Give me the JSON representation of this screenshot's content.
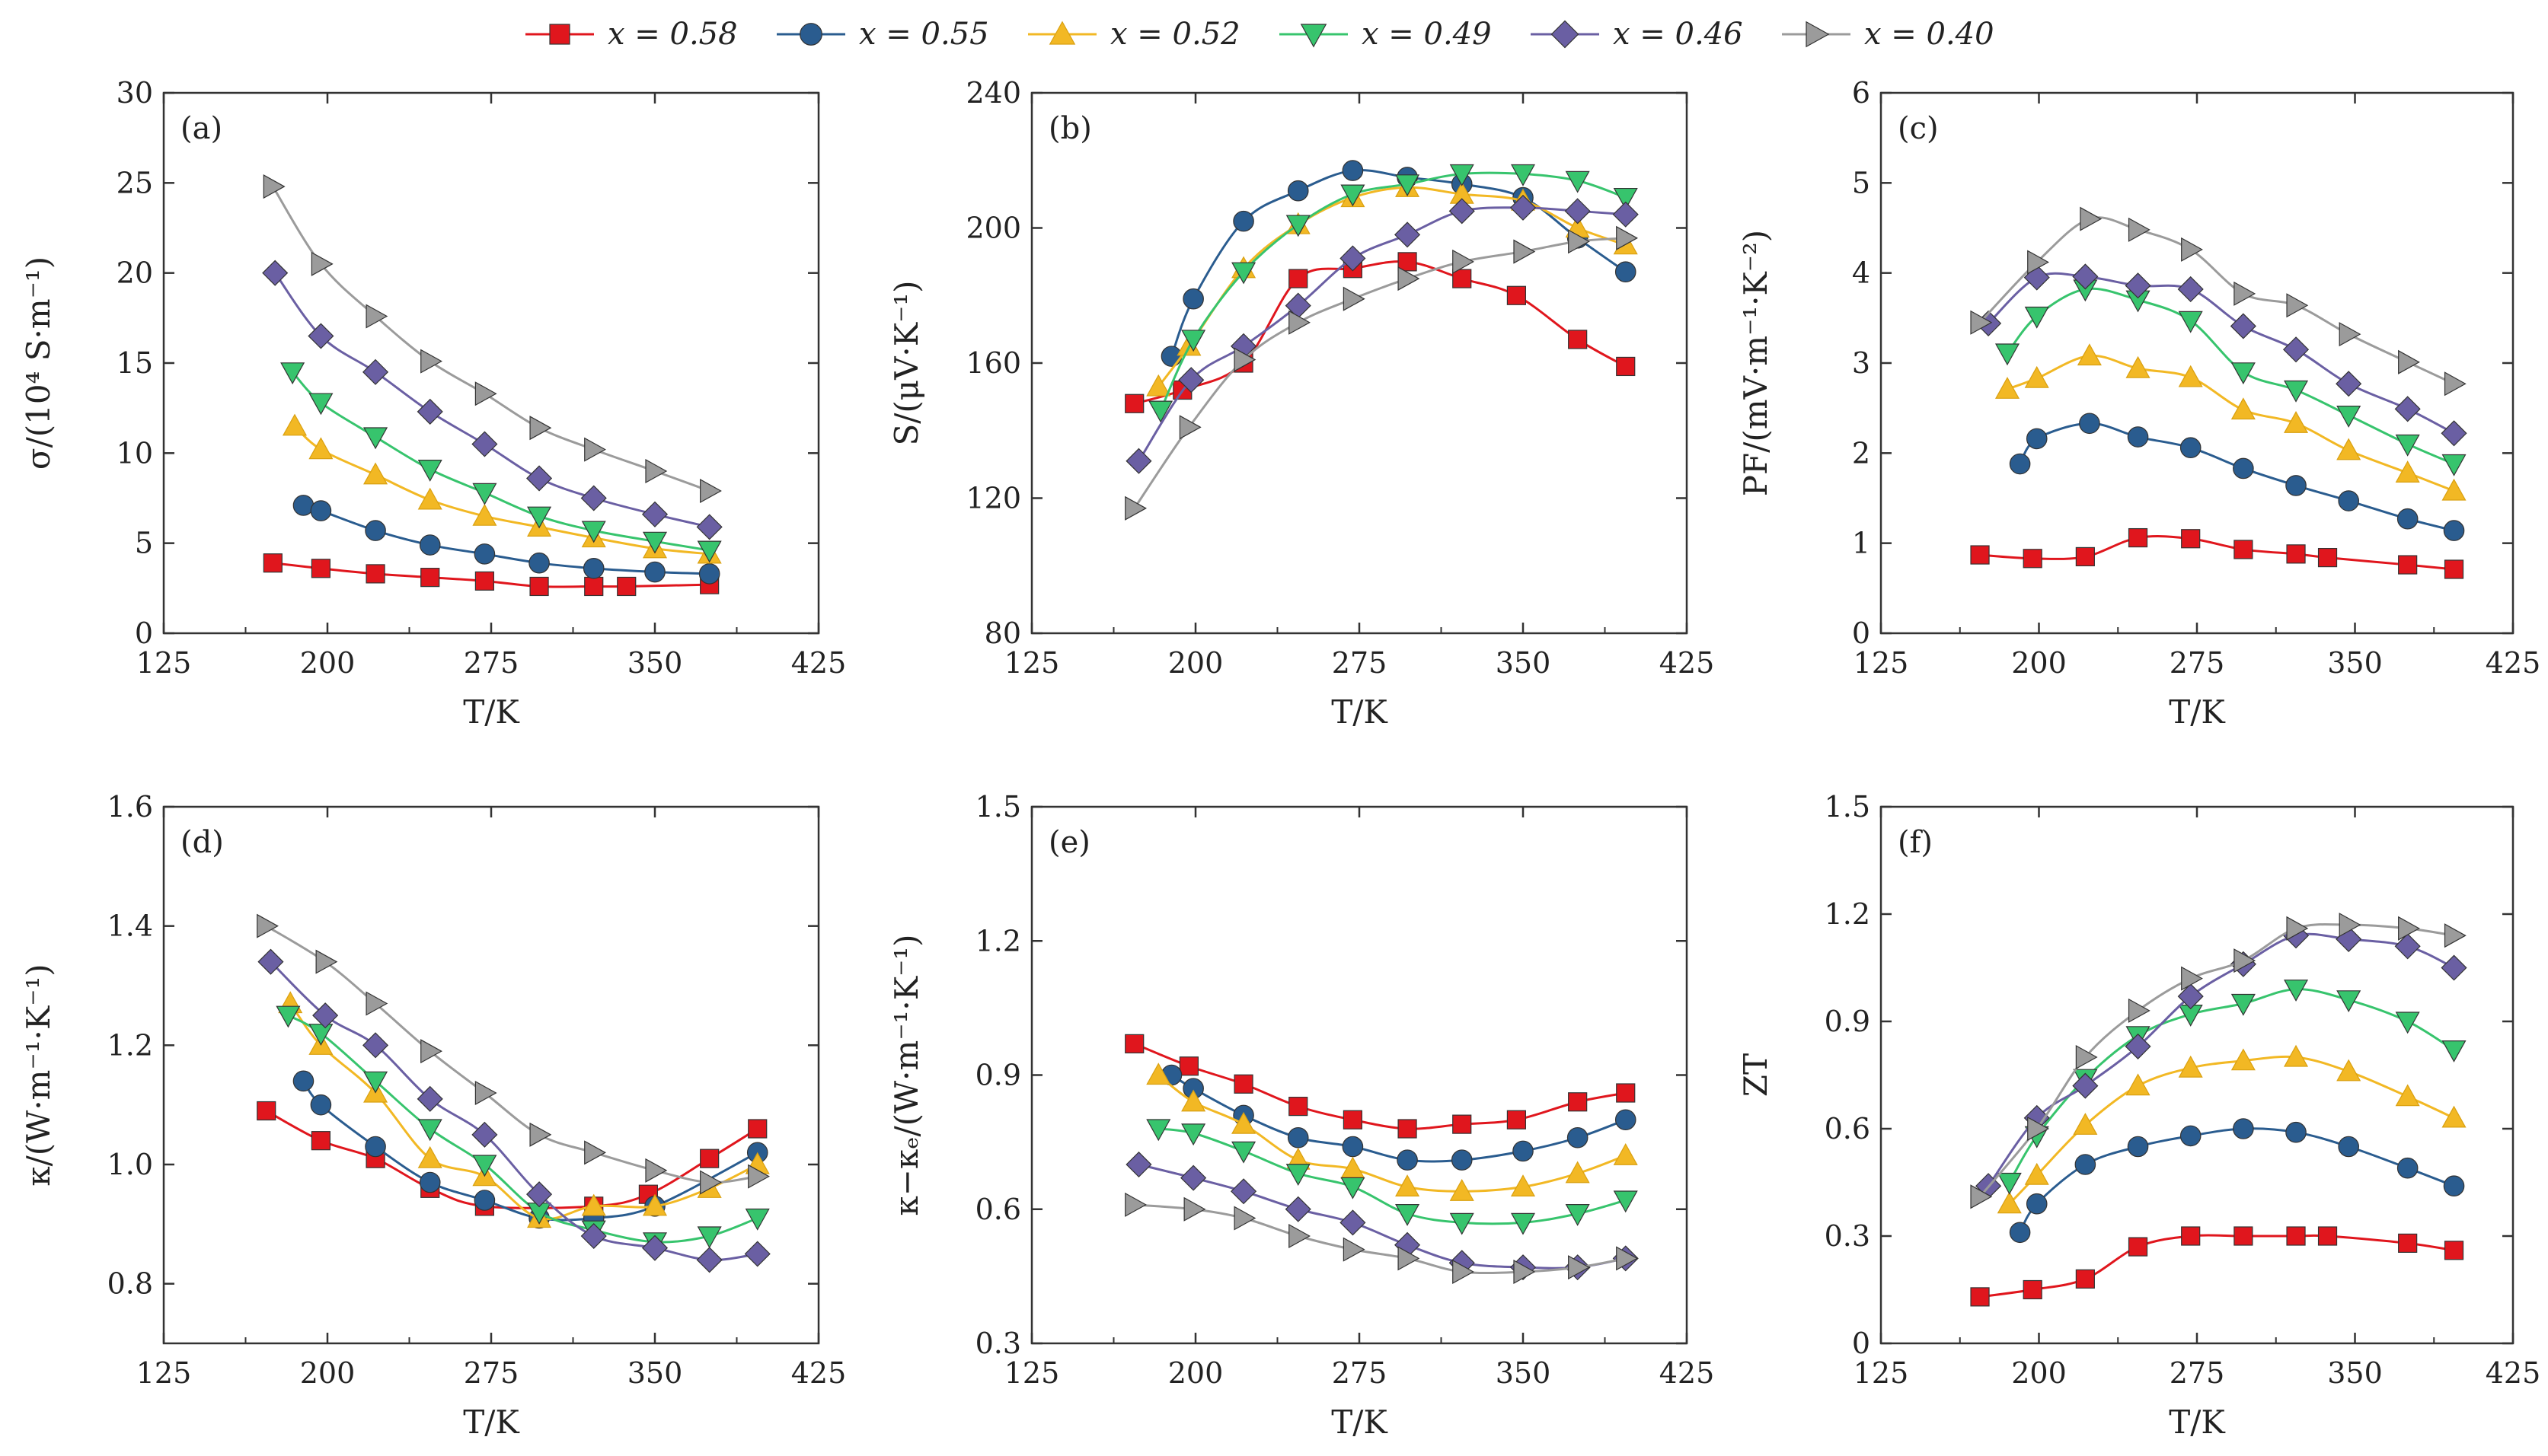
{
  "legend": {
    "placement": "top-center",
    "items": [
      {
        "label": "x = 0.58",
        "color": "#e0161d",
        "marker": "square"
      },
      {
        "label": "x = 0.55",
        "color": "#2a5c8f",
        "marker": "circle"
      },
      {
        "label": "x = 0.52",
        "color": "#f2b824",
        "marker": "triangle-up"
      },
      {
        "label": "x = 0.49",
        "color": "#37c46d",
        "marker": "triangle-down"
      },
      {
        "label": "x = 0.46",
        "color": "#6a5fa3",
        "marker": "diamond"
      },
      {
        "label": "x = 0.40",
        "color": "#9b9b9b",
        "marker": "triangle-right"
      }
    ]
  },
  "chart_data": [
    {
      "type": "line",
      "panel": "(a)",
      "xlabel": "T/K",
      "ylabel": "σ/(10⁴ S·m⁻¹)",
      "xlim": [
        125,
        425
      ],
      "ylim": [
        0,
        30
      ],
      "xticks": [
        125,
        200,
        275,
        350,
        425
      ],
      "yticks": [
        0,
        5,
        10,
        15,
        20,
        25,
        30
      ],
      "series": [
        {
          "name": "x = 0.58",
          "x": [
            175,
            197,
            222,
            247,
            272,
            297,
            322,
            337,
            375
          ],
          "y": [
            3.9,
            3.6,
            3.3,
            3.1,
            2.9,
            2.6,
            2.6,
            2.6,
            2.7
          ]
        },
        {
          "name": "x = 0.55",
          "x": [
            189,
            197,
            222,
            247,
            272,
            297,
            322,
            350,
            375
          ],
          "y": [
            7.1,
            6.8,
            5.7,
            4.9,
            4.4,
            3.9,
            3.6,
            3.4,
            3.3
          ]
        },
        {
          "name": "x = 0.52",
          "x": [
            185,
            197,
            222,
            247,
            272,
            297,
            322,
            350,
            375
          ],
          "y": [
            11.5,
            10.2,
            8.8,
            7.4,
            6.5,
            5.9,
            5.3,
            4.7,
            4.4
          ]
        },
        {
          "name": "x = 0.49",
          "x": [
            184,
            197,
            222,
            247,
            272,
            297,
            322,
            350,
            375
          ],
          "y": [
            14.5,
            12.8,
            10.9,
            9.1,
            7.8,
            6.5,
            5.7,
            5.1,
            4.6
          ]
        },
        {
          "name": "x = 0.46",
          "x": [
            176,
            197,
            222,
            247,
            272,
            297,
            322,
            350,
            375
          ],
          "y": [
            20.0,
            16.5,
            14.5,
            12.3,
            10.5,
            8.6,
            7.5,
            6.6,
            5.9
          ]
        },
        {
          "name": "x = 0.40",
          "x": [
            175,
            197,
            222,
            247,
            272,
            297,
            322,
            350,
            375
          ],
          "y": [
            24.8,
            20.5,
            17.6,
            15.1,
            13.3,
            11.4,
            10.2,
            9.0,
            7.9
          ]
        }
      ]
    },
    {
      "type": "line",
      "panel": "(b)",
      "xlabel": "T/K",
      "ylabel": "S/(μV·K⁻¹)",
      "xlim": [
        125,
        425
      ],
      "ylim": [
        80,
        240
      ],
      "xticks": [
        125,
        200,
        275,
        350,
        425
      ],
      "yticks": [
        80,
        120,
        160,
        200,
        240
      ],
      "series": [
        {
          "name": "x = 0.58",
          "x": [
            172,
            194,
            222,
            247,
            272,
            297,
            322,
            347,
            375,
            397
          ],
          "y": [
            148,
            152,
            160,
            185,
            188,
            190,
            185,
            180,
            167,
            159
          ]
        },
        {
          "name": "x = 0.55",
          "x": [
            189,
            199,
            222,
            247,
            272,
            297,
            322,
            350,
            375,
            397
          ],
          "y": [
            162,
            179,
            202,
            211,
            217,
            215,
            213,
            209,
            197,
            187
          ]
        },
        {
          "name": "x = 0.52",
          "x": [
            183,
            197,
            222,
            247,
            272,
            297,
            322,
            350,
            375,
            397
          ],
          "y": [
            153,
            165,
            188,
            201,
            209,
            212,
            210,
            208,
            200,
            195
          ]
        },
        {
          "name": "x = 0.49",
          "x": [
            184,
            199,
            222,
            247,
            272,
            297,
            322,
            350,
            375,
            397
          ],
          "y": [
            146,
            167,
            187,
            201,
            210,
            213,
            216,
            216,
            214,
            209
          ]
        },
        {
          "name": "x = 0.46",
          "x": [
            174,
            198,
            222,
            247,
            272,
            297,
            322,
            350,
            375,
            397
          ],
          "y": [
            131,
            155,
            165,
            177,
            191,
            198,
            205,
            206,
            205,
            204
          ]
        },
        {
          "name": "x = 0.40",
          "x": [
            172,
            197,
            222,
            247,
            272,
            297,
            322,
            350,
            375,
            397
          ],
          "y": [
            117,
            141,
            161,
            172,
            179,
            185,
            190,
            193,
            196,
            197
          ]
        }
      ]
    },
    {
      "type": "line",
      "panel": "(c)",
      "xlabel": "T/K",
      "ylabel": "PF/(mV·m⁻¹·K⁻²)",
      "xlim": [
        125,
        425
      ],
      "ylim": [
        0,
        6
      ],
      "xticks": [
        125,
        200,
        275,
        350,
        425
      ],
      "yticks": [
        0,
        1,
        2,
        3,
        4,
        5,
        6
      ],
      "series": [
        {
          "name": "x = 0.58",
          "x": [
            172,
            197,
            222,
            247,
            272,
            297,
            322,
            337,
            375,
            397
          ],
          "y": [
            0.87,
            0.83,
            0.85,
            1.06,
            1.05,
            0.93,
            0.88,
            0.84,
            0.76,
            0.71
          ]
        },
        {
          "name": "x = 0.55",
          "x": [
            191,
            199,
            224,
            247,
            272,
            297,
            322,
            347,
            375,
            397
          ],
          "y": [
            1.88,
            2.16,
            2.33,
            2.18,
            2.06,
            1.83,
            1.64,
            1.47,
            1.27,
            1.14
          ]
        },
        {
          "name": "x = 0.52",
          "x": [
            185,
            199,
            224,
            247,
            272,
            297,
            322,
            347,
            375,
            397
          ],
          "y": [
            2.71,
            2.83,
            3.08,
            2.94,
            2.84,
            2.48,
            2.33,
            2.03,
            1.78,
            1.58
          ]
        },
        {
          "name": "x = 0.49",
          "x": [
            185,
            199,
            222,
            247,
            272,
            297,
            322,
            347,
            375,
            397
          ],
          "y": [
            3.11,
            3.52,
            3.82,
            3.7,
            3.47,
            2.9,
            2.7,
            2.42,
            2.1,
            1.88
          ]
        },
        {
          "name": "x = 0.46",
          "x": [
            176,
            199,
            222,
            247,
            272,
            297,
            322,
            347,
            375,
            397
          ],
          "y": [
            3.44,
            3.95,
            3.96,
            3.86,
            3.82,
            3.41,
            3.15,
            2.77,
            2.49,
            2.22
          ]
        },
        {
          "name": "x = 0.40",
          "x": [
            172,
            199,
            224,
            247,
            272,
            297,
            322,
            347,
            375,
            397
          ],
          "y": [
            3.45,
            4.12,
            4.6,
            4.48,
            4.26,
            3.77,
            3.64,
            3.32,
            3.01,
            2.77
          ]
        }
      ]
    },
    {
      "type": "line",
      "panel": "(d)",
      "xlabel": "T/K",
      "ylabel": "κ/(W·m⁻¹·K⁻¹)",
      "xlim": [
        125,
        425
      ],
      "ylim": [
        0.7,
        1.6
      ],
      "xticks": [
        125,
        200,
        275,
        350,
        425
      ],
      "yticks": [
        0.8,
        1.0,
        1.2,
        1.4,
        1.6
      ],
      "series": [
        {
          "name": "x = 0.58",
          "x": [
            172,
            197,
            222,
            247,
            272,
            322,
            347,
            375,
            397
          ],
          "y": [
            1.09,
            1.04,
            1.01,
            0.96,
            0.93,
            0.93,
            0.95,
            1.01,
            1.06
          ]
        },
        {
          "name": "x = 0.55",
          "x": [
            189,
            197,
            222,
            247,
            272,
            297,
            322,
            350,
            397
          ],
          "y": [
            1.14,
            1.1,
            1.03,
            0.97,
            0.94,
            0.91,
            0.91,
            0.93,
            1.02
          ]
        },
        {
          "name": "x = 0.52",
          "x": [
            183,
            197,
            222,
            247,
            272,
            297,
            322,
            350,
            375,
            397
          ],
          "y": [
            1.27,
            1.2,
            1.12,
            1.01,
            0.98,
            0.91,
            0.93,
            0.93,
            0.96,
            1.0
          ]
        },
        {
          "name": "x = 0.49",
          "x": [
            182,
            197,
            222,
            247,
            272,
            297,
            322,
            350,
            375,
            397
          ],
          "y": [
            1.25,
            1.22,
            1.14,
            1.06,
            1.0,
            0.92,
            0.89,
            0.87,
            0.88,
            0.91
          ]
        },
        {
          "name": "x = 0.46",
          "x": [
            174,
            199,
            222,
            247,
            272,
            297,
            322,
            350,
            375,
            397
          ],
          "y": [
            1.34,
            1.25,
            1.2,
            1.11,
            1.05,
            0.95,
            0.88,
            0.86,
            0.84,
            0.85
          ]
        },
        {
          "name": "x = 0.40",
          "x": [
            172,
            199,
            222,
            247,
            272,
            297,
            322,
            350,
            375,
            397
          ],
          "y": [
            1.4,
            1.34,
            1.27,
            1.19,
            1.12,
            1.05,
            1.02,
            0.99,
            0.97,
            0.98
          ]
        }
      ]
    },
    {
      "type": "line",
      "panel": "(e)",
      "xlabel": "T/K",
      "ylabel": "κ−κₑ/(W·m⁻¹·K⁻¹)",
      "xlim": [
        125,
        425
      ],
      "ylim": [
        0.3,
        1.5
      ],
      "xticks": [
        125,
        200,
        275,
        350,
        425
      ],
      "yticks": [
        0.3,
        0.6,
        0.9,
        1.2,
        1.5
      ],
      "series": [
        {
          "name": "x = 0.58",
          "x": [
            172,
            197,
            222,
            247,
            272,
            297,
            322,
            347,
            375,
            397
          ],
          "y": [
            0.97,
            0.92,
            0.88,
            0.83,
            0.8,
            0.78,
            0.79,
            0.8,
            0.84,
            0.86
          ]
        },
        {
          "name": "x = 0.55",
          "x": [
            189,
            199,
            222,
            247,
            272,
            297,
            322,
            350,
            375,
            397
          ],
          "y": [
            0.9,
            0.87,
            0.81,
            0.76,
            0.74,
            0.71,
            0.71,
            0.73,
            0.76,
            0.8
          ]
        },
        {
          "name": "x = 0.52",
          "x": [
            183,
            199,
            222,
            247,
            272,
            297,
            322,
            350,
            375,
            397
          ],
          "y": [
            0.9,
            0.84,
            0.79,
            0.71,
            0.69,
            0.65,
            0.64,
            0.65,
            0.68,
            0.72
          ]
        },
        {
          "name": "x = 0.49",
          "x": [
            183,
            199,
            222,
            247,
            272,
            297,
            322,
            350,
            375,
            397
          ],
          "y": [
            0.78,
            0.77,
            0.73,
            0.68,
            0.65,
            0.59,
            0.57,
            0.57,
            0.59,
            0.62
          ]
        },
        {
          "name": "x = 0.46",
          "x": [
            174,
            199,
            222,
            247,
            272,
            297,
            322,
            350,
            375,
            397
          ],
          "y": [
            0.7,
            0.67,
            0.64,
            0.6,
            0.57,
            0.52,
            0.48,
            0.47,
            0.47,
            0.49
          ]
        },
        {
          "name": "x = 0.40",
          "x": [
            172,
            199,
            222,
            247,
            272,
            297,
            322,
            350,
            375,
            397
          ],
          "y": [
            0.61,
            0.6,
            0.58,
            0.54,
            0.51,
            0.49,
            0.46,
            0.46,
            0.47,
            0.49
          ]
        }
      ]
    },
    {
      "type": "line",
      "panel": "(f)",
      "xlabel": "T/K",
      "ylabel": "ZT",
      "xlim": [
        125,
        425
      ],
      "ylim": [
        0,
        1.5
      ],
      "xticks": [
        125,
        200,
        275,
        350,
        425
      ],
      "yticks": [
        0,
        0.3,
        0.6,
        0.9,
        1.2,
        1.5
      ],
      "series": [
        {
          "name": "x = 0.58",
          "x": [
            172,
            197,
            222,
            247,
            272,
            297,
            322,
            337,
            375,
            397
          ],
          "y": [
            0.13,
            0.15,
            0.18,
            0.27,
            0.3,
            0.3,
            0.3,
            0.3,
            0.28,
            0.26
          ]
        },
        {
          "name": "x = 0.55",
          "x": [
            191,
            199,
            222,
            247,
            272,
            297,
            322,
            347,
            375,
            397
          ],
          "y": [
            0.31,
            0.39,
            0.5,
            0.55,
            0.58,
            0.6,
            0.59,
            0.55,
            0.49,
            0.44
          ]
        },
        {
          "name": "x = 0.52",
          "x": [
            186,
            199,
            222,
            247,
            272,
            297,
            322,
            347,
            375,
            397
          ],
          "y": [
            0.39,
            0.47,
            0.61,
            0.72,
            0.77,
            0.79,
            0.8,
            0.76,
            0.69,
            0.63
          ]
        },
        {
          "name": "x = 0.49",
          "x": [
            186,
            199,
            222,
            247,
            272,
            297,
            322,
            347,
            375,
            397
          ],
          "y": [
            0.45,
            0.58,
            0.74,
            0.86,
            0.92,
            0.95,
            0.99,
            0.96,
            0.9,
            0.82
          ]
        },
        {
          "name": "x = 0.46",
          "x": [
            176,
            199,
            222,
            247,
            272,
            297,
            322,
            347,
            375,
            397
          ],
          "y": [
            0.44,
            0.63,
            0.72,
            0.83,
            0.97,
            1.06,
            1.14,
            1.13,
            1.11,
            1.05
          ]
        },
        {
          "name": "x = 0.40",
          "x": [
            172,
            199,
            222,
            247,
            272,
            297,
            322,
            347,
            375,
            397
          ],
          "y": [
            0.41,
            0.6,
            0.8,
            0.93,
            1.02,
            1.07,
            1.16,
            1.17,
            1.16,
            1.14
          ]
        }
      ]
    }
  ]
}
